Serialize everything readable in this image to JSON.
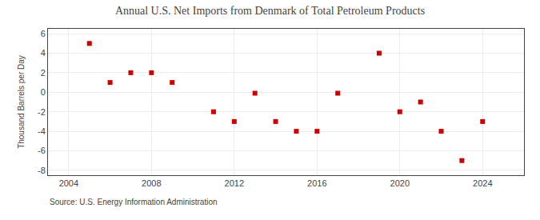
{
  "chart_data": {
    "type": "scatter",
    "title": "Annual U.S. Net Imports from Denmark of Total Petroleum Products",
    "ylabel": "Thousand Barrels per Day",
    "annotations": [
      "Source: U.S. Energy Information Administration"
    ],
    "x": [
      2005,
      2006,
      2007,
      2008,
      2009,
      2011,
      2012,
      2013,
      2014,
      2015,
      2016,
      2017,
      2019,
      2020,
      2021,
      2022,
      2023,
      2024
    ],
    "values": [
      5.0,
      1.0,
      2.0,
      2.0,
      1.0,
      -2.0,
      -3.0,
      -0.1,
      -3.0,
      -4.0,
      -4.0,
      -0.1,
      4.0,
      -2.0,
      -1.0,
      -4.0,
      -7.0,
      -3.0
    ],
    "color": "#cc0000",
    "marker": "square",
    "xlim": [
      2003.0,
      2026.0
    ],
    "xticks": [
      2004,
      2008,
      2012,
      2016,
      2020,
      2024
    ],
    "ylim": [
      -8.5,
      6.5
    ],
    "yticks": [
      -8,
      -6,
      -4,
      -2,
      0,
      2,
      4,
      6
    ],
    "grid": true
  }
}
